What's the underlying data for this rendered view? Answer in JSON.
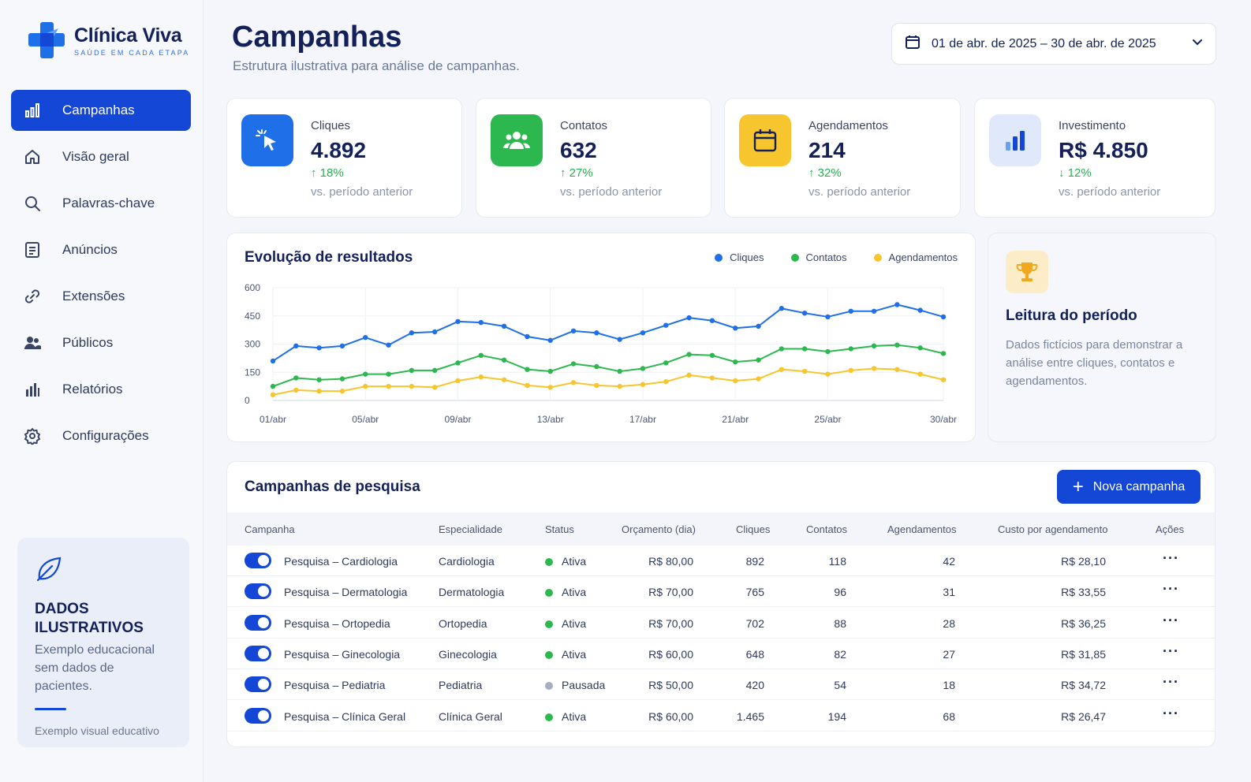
{
  "brand": {
    "name": "Clínica Viva",
    "tagline": "SAÚDE EM CADA ETAPA"
  },
  "nav": [
    {
      "label": "Campanhas",
      "icon": "bar-chart-icon",
      "active": true
    },
    {
      "label": "Visão geral",
      "icon": "home-icon"
    },
    {
      "label": "Palavras-chave",
      "icon": "search-icon"
    },
    {
      "label": "Anúncios",
      "icon": "document-icon"
    },
    {
      "label": "Extensões",
      "icon": "link-icon"
    },
    {
      "label": "Públicos",
      "icon": "users-icon"
    },
    {
      "label": "Relatórios",
      "icon": "report-icon"
    },
    {
      "label": "Configurações",
      "icon": "gear-icon"
    }
  ],
  "info_card": {
    "title": "DADOS ILUSTRATIVOS",
    "text": "Exemplo educacional sem dados de pacientes.",
    "footer": "Exemplo visual educativo"
  },
  "header": {
    "title": "Campanhas",
    "subtitle": "Estrutura ilustrativa para análise de campanhas.",
    "date_range": "01 de abr. de 2025 – 30 de abr. de 2025"
  },
  "kpis": [
    {
      "label": "Cliques",
      "value": "4.892",
      "delta": "18%",
      "direction": "up",
      "note": "vs. período anterior",
      "icon": "cursor-click-icon",
      "color": "#1f6fe8"
    },
    {
      "label": "Contatos",
      "value": "632",
      "delta": "27%",
      "direction": "up",
      "note": "vs. período anterior",
      "icon": "users-icon",
      "color": "#2db84f"
    },
    {
      "label": "Agendamentos",
      "value": "214",
      "delta": "32%",
      "direction": "up",
      "note": "vs. período anterior",
      "icon": "calendar-icon",
      "color": "#f7c52e"
    },
    {
      "label": "Investimento",
      "value": "R$ 4.850",
      "delta": "12%",
      "direction": "down",
      "note": "vs. período anterior",
      "icon": "bar-chart-icon",
      "color": "#dfe9fb"
    }
  ],
  "reading": {
    "title": "Leitura do período",
    "text": "Dados fictícios para demonstrar a análise entre cliques, contatos e agendamentos."
  },
  "chart_data": {
    "type": "line",
    "title": "Evolução de resultados",
    "x": [
      "01/abr",
      "02/abr",
      "03/abr",
      "04/abr",
      "05/abr",
      "06/abr",
      "07/abr",
      "08/abr",
      "09/abr",
      "10/abr",
      "11/abr",
      "12/abr",
      "13/abr",
      "14/abr",
      "15/abr",
      "16/abr",
      "17/abr",
      "18/abr",
      "19/abr",
      "20/abr",
      "21/abr",
      "22/abr",
      "23/abr",
      "24/abr",
      "25/abr",
      "26/abr",
      "27/abr",
      "28/abr",
      "29/abr",
      "30/abr"
    ],
    "x_tick_labels": [
      "01/abr",
      "05/abr",
      "09/abr",
      "13/abr",
      "17/abr",
      "21/abr",
      "25/abr",
      "30/abr"
    ],
    "ylim": [
      0,
      600
    ],
    "y_ticks": [
      0,
      150,
      300,
      450,
      600
    ],
    "grid": true,
    "legend_position": "top-right",
    "series": [
      {
        "name": "Cliques",
        "color": "#1f6fe8",
        "values": [
          210,
          290,
          280,
          290,
          335,
          295,
          360,
          365,
          420,
          415,
          395,
          340,
          320,
          370,
          360,
          325,
          360,
          400,
          440,
          425,
          385,
          395,
          490,
          465,
          445,
          475,
          475,
          510,
          480,
          445
        ]
      },
      {
        "name": "Contatos",
        "color": "#2db84f",
        "values": [
          75,
          120,
          110,
          115,
          140,
          140,
          160,
          160,
          200,
          240,
          215,
          165,
          155,
          195,
          180,
          155,
          170,
          200,
          245,
          240,
          205,
          215,
          275,
          275,
          260,
          275,
          290,
          295,
          280,
          250
        ]
      },
      {
        "name": "Agendamentos",
        "color": "#f7c52e",
        "values": [
          30,
          55,
          50,
          50,
          75,
          75,
          75,
          70,
          105,
          125,
          110,
          80,
          70,
          95,
          80,
          75,
          85,
          100,
          135,
          120,
          105,
          115,
          165,
          155,
          140,
          160,
          170,
          165,
          140,
          110
        ]
      }
    ]
  },
  "table": {
    "title": "Campanhas de pesquisa",
    "new_button": "Nova campanha",
    "columns": [
      "Campanha",
      "Especialidade",
      "Status",
      "Orçamento (dia)",
      "Cliques",
      "Contatos",
      "Agendamentos",
      "Custo por agendamento",
      "Ações"
    ],
    "rows": [
      {
        "name": "Pesquisa – Cardiologia",
        "specialty": "Cardiologia",
        "status": "Ativa",
        "status_color": "#2db84f",
        "budget": "R$ 80,00",
        "clicks": "892",
        "contacts": "118",
        "appointments": "42",
        "cost": "R$ 28,10"
      },
      {
        "name": "Pesquisa – Dermatologia",
        "specialty": "Dermatologia",
        "status": "Ativa",
        "status_color": "#2db84f",
        "budget": "R$ 70,00",
        "clicks": "765",
        "contacts": "96",
        "appointments": "31",
        "cost": "R$ 33,55"
      },
      {
        "name": "Pesquisa – Ortopedia",
        "specialty": "Ortopedia",
        "status": "Ativa",
        "status_color": "#2db84f",
        "budget": "R$ 70,00",
        "clicks": "702",
        "contacts": "88",
        "appointments": "28",
        "cost": "R$ 36,25"
      },
      {
        "name": "Pesquisa – Ginecologia",
        "specialty": "Ginecologia",
        "status": "Ativa",
        "status_color": "#2db84f",
        "budget": "R$ 60,00",
        "clicks": "648",
        "contacts": "82",
        "appointments": "27",
        "cost": "R$ 31,85"
      },
      {
        "name": "Pesquisa – Pediatria",
        "specialty": "Pediatria",
        "status": "Pausada",
        "status_color": "#a7aec2",
        "budget": "R$ 50,00",
        "clicks": "420",
        "contacts": "54",
        "appointments": "18",
        "cost": "R$ 34,72"
      },
      {
        "name": "Pesquisa – Clínica Geral",
        "specialty": "Clínica Geral",
        "status": "Ativa",
        "status_color": "#2db84f",
        "budget": "R$ 60,00",
        "clicks": "1.465",
        "contacts": "194",
        "appointments": "68",
        "cost": "R$ 26,47"
      }
    ]
  }
}
